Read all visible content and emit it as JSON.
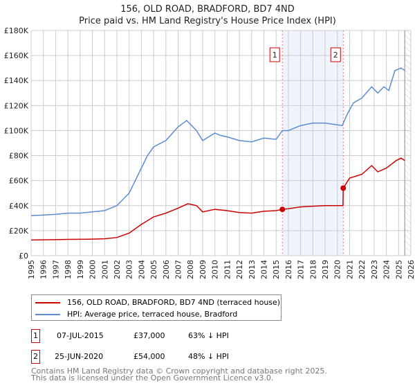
{
  "title_line1": "156, OLD ROAD, BRADFORD, BD7 4ND",
  "title_line2": "Price paid vs. HM Land Registry's House Price Index (HPI)",
  "chart_data": {
    "type": "line",
    "title": "156, OLD ROAD, BRADFORD, BD7 4ND — Price paid vs. HM Land Registry's House Price Index (HPI)",
    "xlim": [
      1995,
      2026
    ],
    "ylim": [
      0,
      180000
    ],
    "x_ticks": [
      "1995",
      "1996",
      "1997",
      "1998",
      "1999",
      "2000",
      "2001",
      "2002",
      "2003",
      "2004",
      "2005",
      "2006",
      "2007",
      "2008",
      "2009",
      "2010",
      "2011",
      "2012",
      "2013",
      "2014",
      "2015",
      "2016",
      "2017",
      "2018",
      "2019",
      "2020",
      "2021",
      "2022",
      "2023",
      "2024",
      "2025",
      "2026"
    ],
    "y_ticks": [
      {
        "v": 0,
        "label": "£0"
      },
      {
        "v": 20000,
        "label": "£20K"
      },
      {
        "v": 40000,
        "label": "£40K"
      },
      {
        "v": 60000,
        "label": "£60K"
      },
      {
        "v": 80000,
        "label": "£80K"
      },
      {
        "v": 100000,
        "label": "£100K"
      },
      {
        "v": 120000,
        "label": "£120K"
      },
      {
        "v": 140000,
        "label": "£140K"
      },
      {
        "v": 160000,
        "label": "£160K"
      },
      {
        "v": 180000,
        "label": "£180K"
      }
    ],
    "grid": true,
    "series": [
      {
        "name": "156, OLD ROAD, BRADFORD, BD7 4ND (terraced house)",
        "color": "#cc0000",
        "points": [
          [
            1995,
            12500
          ],
          [
            1997,
            12800
          ],
          [
            1998,
            13000
          ],
          [
            2000,
            13200
          ],
          [
            2001,
            13500
          ],
          [
            2002,
            14500
          ],
          [
            2003,
            18000
          ],
          [
            2004,
            25000
          ],
          [
            2005,
            31000
          ],
          [
            2006,
            34000
          ],
          [
            2007,
            38000
          ],
          [
            2007.8,
            41500
          ],
          [
            2008.5,
            40000
          ],
          [
            2009,
            35000
          ],
          [
            2010,
            37000
          ],
          [
            2011,
            36000
          ],
          [
            2012,
            34500
          ],
          [
            2013,
            34000
          ],
          [
            2014,
            35500
          ],
          [
            2015,
            36000
          ],
          [
            2015.51,
            37000
          ],
          [
            2016,
            37500
          ],
          [
            2017,
            39000
          ],
          [
            2018,
            39500
          ],
          [
            2019,
            40000
          ],
          [
            2020.46,
            40000
          ],
          [
            2020.48,
            54000
          ],
          [
            2021,
            62000
          ],
          [
            2022,
            65000
          ],
          [
            2022.8,
            72000
          ],
          [
            2023.3,
            67000
          ],
          [
            2024,
            70000
          ],
          [
            2024.8,
            76000
          ],
          [
            2025.2,
            78000
          ],
          [
            2025.5,
            76000
          ]
        ]
      },
      {
        "name": "HPI: Average price, terraced house, Bradford",
        "color": "#5b8bd0",
        "points": [
          [
            1995,
            32000
          ],
          [
            1996,
            32500
          ],
          [
            1997,
            33000
          ],
          [
            1998,
            34000
          ],
          [
            1999,
            34000
          ],
          [
            2000,
            35000
          ],
          [
            2001,
            36000
          ],
          [
            2002,
            40000
          ],
          [
            2003,
            50000
          ],
          [
            2004,
            70000
          ],
          [
            2004.5,
            80000
          ],
          [
            2005,
            87000
          ],
          [
            2006,
            92000
          ],
          [
            2007,
            103000
          ],
          [
            2007.7,
            108000
          ],
          [
            2008.5,
            100000
          ],
          [
            2009,
            92000
          ],
          [
            2010,
            98000
          ],
          [
            2010.5,
            96000
          ],
          [
            2011,
            95000
          ],
          [
            2012,
            92000
          ],
          [
            2013,
            91000
          ],
          [
            2014,
            94000
          ],
          [
            2015,
            93000
          ],
          [
            2015.51,
            100000
          ],
          [
            2016,
            100000
          ],
          [
            2017,
            104000
          ],
          [
            2018,
            106000
          ],
          [
            2019,
            106000
          ],
          [
            2020.4,
            104000
          ],
          [
            2020.8,
            113000
          ],
          [
            2021.3,
            122000
          ],
          [
            2022,
            126000
          ],
          [
            2022.8,
            135000
          ],
          [
            2023.3,
            130000
          ],
          [
            2023.8,
            135000
          ],
          [
            2024.2,
            132000
          ],
          [
            2024.7,
            148000
          ],
          [
            2025.2,
            150000
          ],
          [
            2025.5,
            148000
          ]
        ]
      }
    ],
    "annotations": [
      {
        "label": "1",
        "x": 2015.51,
        "y": 37000
      },
      {
        "label": "2",
        "x": 2020.48,
        "y": 54000
      }
    ],
    "shaded_range": [
      2015.51,
      2020.48
    ],
    "forecast_hatch_from": 2025.5
  },
  "legend": {
    "items": [
      {
        "label": "156, OLD ROAD, BRADFORD, BD7 4ND (terraced house)",
        "color": "#cc0000"
      },
      {
        "label": "HPI: Average price, terraced house, Bradford",
        "color": "#5b8bd0"
      }
    ]
  },
  "transactions": [
    {
      "num": "1",
      "date": "07-JUL-2015",
      "price": "£37,000",
      "hpi": "63% ↓ HPI"
    },
    {
      "num": "2",
      "date": "25-JUN-2020",
      "price": "£54,000",
      "hpi": "48% ↓ HPI"
    }
  ],
  "footer": {
    "line1": "Contains HM Land Registry data © Crown copyright and database right 2025.",
    "line2": "This data is licensed under the Open Government Licence v3.0."
  }
}
